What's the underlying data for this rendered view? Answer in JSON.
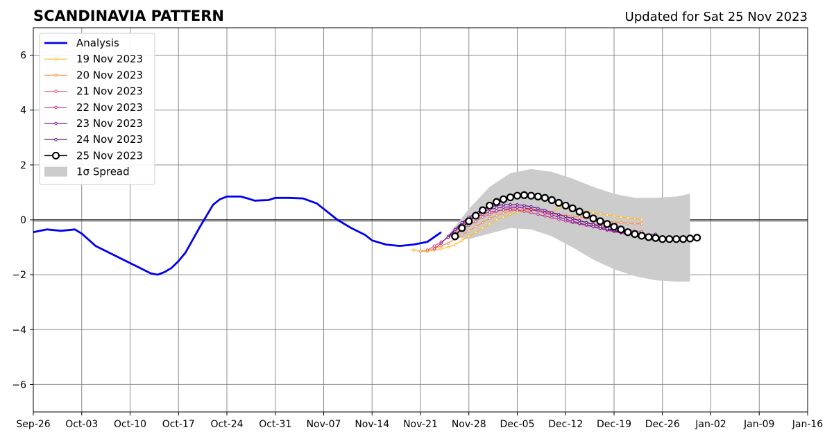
{
  "chart_data": {
    "type": "line",
    "title": "SCANDINAVIA PATTERN",
    "subtitle": "Updated for Sat 25 Nov 2023",
    "xlabel": "",
    "ylabel": "",
    "xlim": [
      "2023-09-26",
      "2024-01-16"
    ],
    "ylim": [
      -7,
      7
    ],
    "x_ticks": [
      "Sep-26",
      "Oct-03",
      "Oct-10",
      "Oct-17",
      "Oct-24",
      "Oct-31",
      "Nov-07",
      "Nov-14",
      "Nov-21",
      "Nov-28",
      "Dec-05",
      "Dec-12",
      "Dec-19",
      "Dec-26",
      "Jan-02",
      "Jan-09",
      "Jan-16"
    ],
    "y_ticks": [
      -6,
      -4,
      -2,
      0,
      2,
      4,
      6
    ],
    "y_tick_labels": [
      "−6",
      "−4",
      "−2",
      "0",
      "2",
      "4",
      "6"
    ],
    "grid": true,
    "zero_line": 0,
    "legend_position": "top-left",
    "analysis": {
      "name": "Analysis",
      "color": "#0000ee",
      "x": [
        "2023-09-26",
        "2023-09-28",
        "2023-09-30",
        "2023-10-02",
        "2023-10-03",
        "2023-10-05",
        "2023-10-07",
        "2023-10-09",
        "2023-10-11",
        "2023-10-13",
        "2023-10-14",
        "2023-10-15",
        "2023-10-16",
        "2023-10-17",
        "2023-10-18",
        "2023-10-20",
        "2023-10-22",
        "2023-10-23",
        "2023-10-24",
        "2023-10-26",
        "2023-10-27",
        "2023-10-28",
        "2023-10-30",
        "2023-10-31",
        "2023-11-02",
        "2023-11-04",
        "2023-11-06",
        "2023-11-07",
        "2023-11-09",
        "2023-11-11",
        "2023-11-13",
        "2023-11-14",
        "2023-11-16",
        "2023-11-18",
        "2023-11-20",
        "2023-11-22",
        "2023-11-24"
      ],
      "y": [
        -0.45,
        -0.35,
        -0.4,
        -0.35,
        -0.5,
        -0.95,
        -1.2,
        -1.45,
        -1.7,
        -1.95,
        -2.0,
        -1.9,
        -1.75,
        -1.5,
        -1.2,
        -0.3,
        0.55,
        0.75,
        0.85,
        0.85,
        0.78,
        0.7,
        0.72,
        0.8,
        0.8,
        0.78,
        0.6,
        0.4,
        0.0,
        -0.3,
        -0.55,
        -0.75,
        -0.9,
        -0.95,
        -0.9,
        -0.8,
        -0.45
      ]
    },
    "spread": {
      "name": "1σ Spread",
      "color": "#cccccc",
      "x": [
        "2023-11-25",
        "2023-11-28",
        "2023-12-01",
        "2023-12-04",
        "2023-12-07",
        "2023-12-10",
        "2023-12-13",
        "2023-12-16",
        "2023-12-19",
        "2023-12-22",
        "2023-12-25",
        "2023-12-28",
        "2023-12-30"
      ],
      "upper": [
        -0.55,
        0.4,
        1.2,
        1.7,
        1.85,
        1.75,
        1.5,
        1.2,
        0.95,
        0.8,
        0.8,
        0.85,
        0.95
      ],
      "lower": [
        -0.6,
        -0.7,
        -0.5,
        -0.3,
        -0.35,
        -0.6,
        -1.0,
        -1.45,
        -1.8,
        -2.05,
        -2.2,
        -2.25,
        -2.25
      ]
    },
    "series": [
      {
        "name": "19 Nov 2023",
        "color": "#ffb627",
        "start": "2023-11-20",
        "values": [
          -1.1,
          -1.15,
          -1.15,
          -1.1,
          -1.05,
          -1.0,
          -0.9,
          -0.75,
          -0.6,
          -0.45,
          -0.3,
          -0.15,
          0.0,
          0.1,
          0.2,
          0.28,
          0.33,
          0.35,
          0.33,
          0.3,
          0.25,
          0.45,
          0.42,
          0.38,
          0.34,
          0.3,
          0.26,
          0.22,
          0.18,
          0.14,
          0.1,
          0.07,
          0.04,
          0.01
        ]
      },
      {
        "name": "20 Nov 2023",
        "color": "#f78d48",
        "start": "2023-11-21",
        "values": [
          -1.15,
          -1.1,
          -1.05,
          -0.95,
          -0.85,
          -0.7,
          -0.55,
          -0.4,
          -0.25,
          -0.1,
          0.05,
          0.15,
          0.25,
          0.32,
          0.36,
          0.38,
          0.36,
          0.32,
          0.27,
          0.22,
          0.2,
          0.17,
          0.14,
          0.1,
          0.06,
          0.02,
          -0.02,
          -0.05,
          -0.08,
          -0.1,
          -0.12,
          -0.14,
          -0.15
        ]
      },
      {
        "name": "21 Nov 2023",
        "color": "#e35b6b",
        "start": "2023-11-22",
        "values": [
          -1.1,
          -0.95,
          -0.8,
          -0.65,
          -0.5,
          -0.35,
          -0.2,
          -0.05,
          0.1,
          0.2,
          0.3,
          0.38,
          0.42,
          0.45,
          0.44,
          0.4,
          0.36,
          0.3,
          0.25,
          0.18,
          0.12,
          0.05,
          -0.02,
          -0.09,
          -0.15,
          -0.2,
          -0.25,
          -0.3,
          -0.33,
          -0.36,
          -0.4,
          -0.43
        ]
      },
      {
        "name": "22 Nov 2023",
        "color": "#b9308e",
        "start": "2023-11-23",
        "values": [
          -1.05,
          -0.85,
          -0.6,
          -0.4,
          -0.2,
          0.0,
          0.1,
          0.2,
          0.28,
          0.33,
          0.36,
          0.37,
          0.35,
          0.31,
          0.26,
          0.2,
          0.14,
          0.08,
          0.02,
          -0.04,
          -0.1,
          -0.15,
          -0.2,
          -0.26,
          -0.32,
          -0.38,
          -0.43,
          -0.48,
          -0.52,
          -0.55,
          -0.57
        ]
      },
      {
        "name": "23 Nov 2023",
        "color": "#8c169c",
        "start": "2023-11-24",
        "values": [
          -0.85,
          -0.6,
          -0.35,
          -0.15,
          0.05,
          0.2,
          0.3,
          0.38,
          0.43,
          0.46,
          0.47,
          0.46,
          0.43,
          0.38,
          0.32,
          0.25,
          0.18,
          0.1,
          0.03,
          -0.05,
          -0.12,
          -0.18,
          -0.24,
          -0.3,
          -0.36,
          -0.42,
          -0.46,
          -0.5,
          -0.53,
          -0.55,
          -0.55
        ]
      },
      {
        "name": "24 Nov 2023",
        "color": "#5a0f8c",
        "start": "2023-11-25",
        "values": [
          -0.65,
          -0.35,
          -0.1,
          0.1,
          0.25,
          0.38,
          0.47,
          0.52,
          0.55,
          0.56,
          0.55,
          0.52,
          0.48,
          0.42,
          0.35,
          0.27,
          0.2,
          0.12,
          0.05,
          -0.03,
          -0.1,
          -0.17,
          -0.25,
          -0.32,
          -0.38,
          -0.44,
          -0.48,
          -0.52,
          -0.55,
          -0.55,
          -0.52
        ]
      },
      {
        "name": "25 Nov 2023",
        "color": "#000000",
        "start": "2023-11-26",
        "values": [
          -0.6,
          -0.3,
          -0.05,
          0.15,
          0.35,
          0.52,
          0.65,
          0.75,
          0.82,
          0.88,
          0.9,
          0.88,
          0.85,
          0.8,
          0.72,
          0.62,
          0.52,
          0.42,
          0.3,
          0.18,
          0.05,
          -0.05,
          -0.15,
          -0.25,
          -0.35,
          -0.45,
          -0.52,
          -0.58,
          -0.63,
          -0.66,
          -0.7,
          -0.7,
          -0.7,
          -0.7,
          -0.68,
          -0.65
        ]
      }
    ]
  }
}
